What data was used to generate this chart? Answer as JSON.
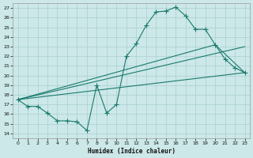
{
  "xlabel": "Humidex (Indice chaleur)",
  "bg_color": "#cce8e8",
  "grid_color": "#aacfcf",
  "line_color": "#1a7a6e",
  "xlim": [
    -0.5,
    23.5
  ],
  "ylim": [
    13.5,
    27.5
  ],
  "xticks": [
    0,
    1,
    2,
    3,
    4,
    5,
    6,
    7,
    8,
    9,
    10,
    11,
    12,
    13,
    14,
    15,
    16,
    17,
    18,
    19,
    20,
    21,
    22,
    23
  ],
  "yticks": [
    14,
    15,
    16,
    17,
    18,
    19,
    20,
    21,
    22,
    23,
    24,
    25,
    26,
    27
  ],
  "line_main": {
    "x": [
      0,
      1,
      2,
      3,
      4,
      5,
      6,
      7,
      8,
      9,
      10,
      11,
      12,
      13,
      14,
      15,
      16,
      17,
      18,
      19,
      20,
      21,
      22,
      23
    ],
    "y": [
      17.5,
      16.8,
      16.8,
      16.1,
      15.3,
      15.3,
      15.2,
      14.3,
      19.0,
      16.1,
      17.0,
      22.0,
      23.3,
      25.2,
      26.6,
      26.7,
      27.1,
      26.2,
      24.8,
      24.8,
      23.2,
      21.7,
      20.8,
      20.3
    ]
  },
  "line2": {
    "x": [
      0,
      23
    ],
    "y": [
      17.5,
      23.0
    ]
  },
  "line3": {
    "x": [
      0,
      20,
      23
    ],
    "y": [
      17.5,
      23.2,
      20.3
    ]
  },
  "line4": {
    "x": [
      0,
      23
    ],
    "y": [
      17.5,
      20.3
    ]
  }
}
